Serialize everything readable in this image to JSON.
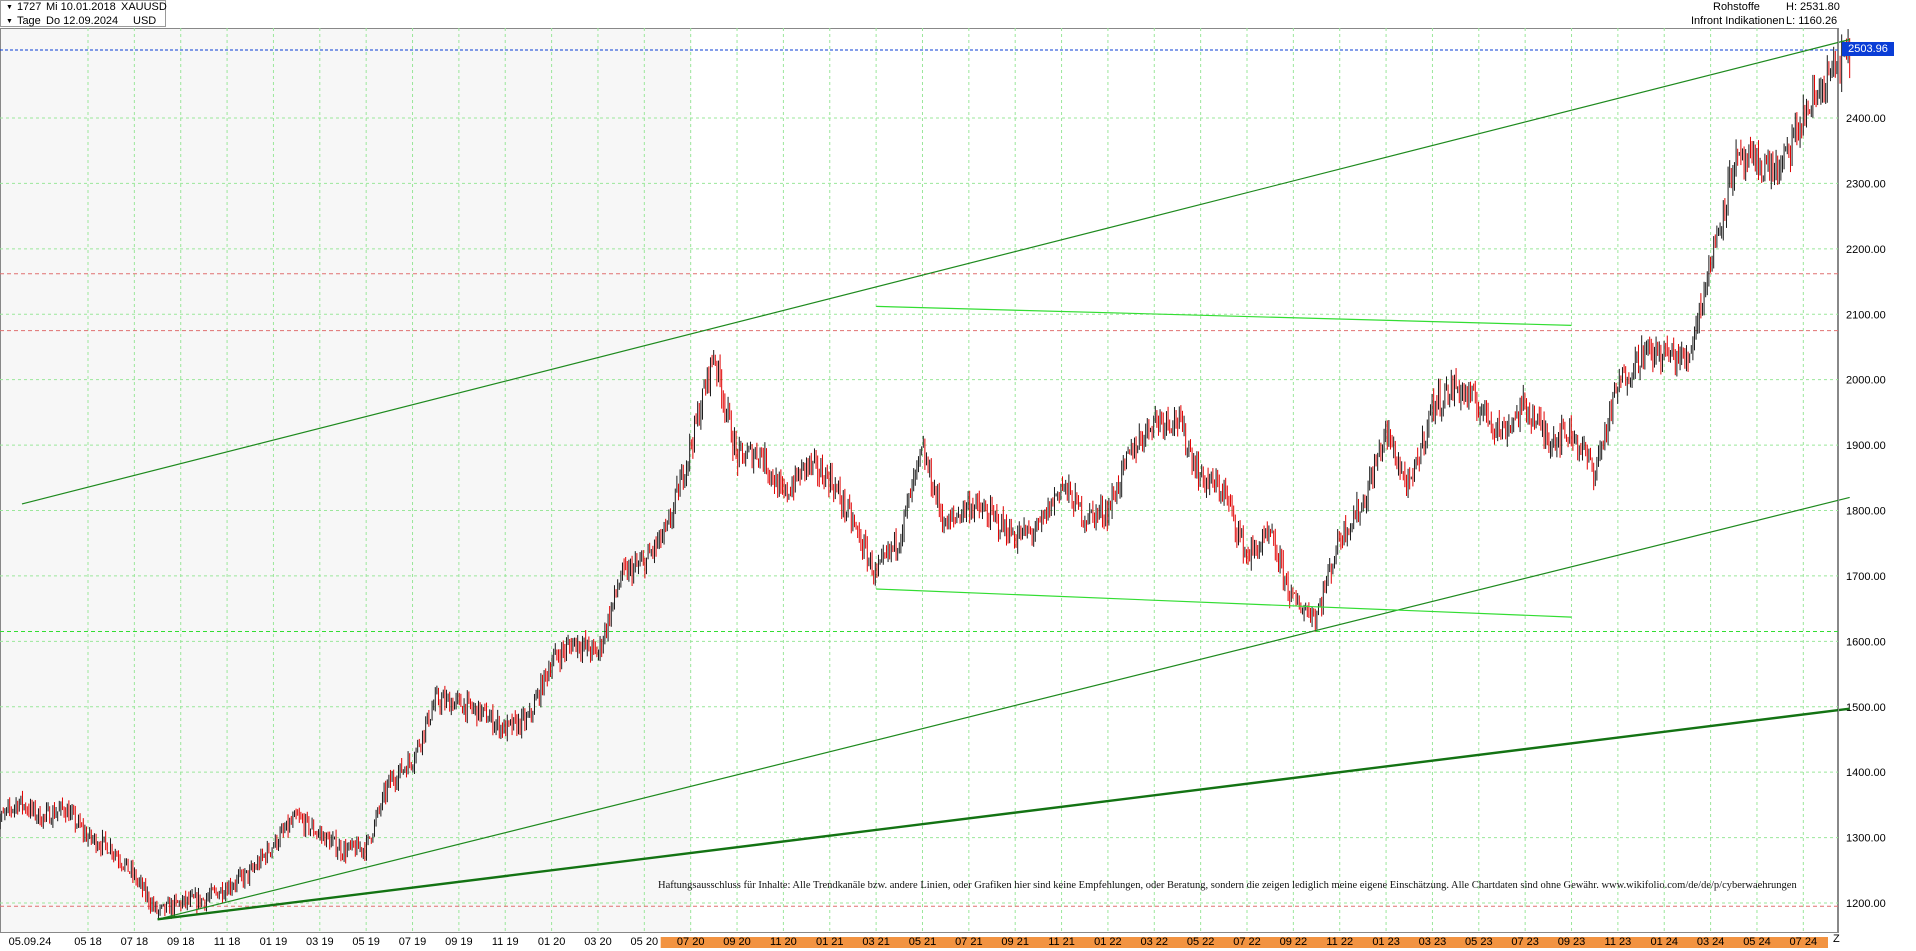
{
  "header": {
    "instrument_id": "1727",
    "start_date": "Mi 10.01.2018",
    "symbol": "XAUUSD",
    "period": "Tage",
    "end_date": "Do 12.09.2024",
    "currency": "USD",
    "category": "Rohstoffe",
    "high_label": "H: 2531.80",
    "source": "Infront Indikationen",
    "low_label": "L: 1160.26"
  },
  "last_price_label": "2503.96",
  "z_label": "Z",
  "disclaimer": "Haftungsausschluss für Inhalte: Alle Trendkanäle bzw. andere Linien, oder Grafiken hier sind keine Empfehlungen, oder Beratung, sondern die zeigen lediglich meine eigene Einschätzung. Alle Chartdaten sind ohne Gewähr.  www.wikifolio.com/de/de/p/cyberwaehrungen",
  "colors": {
    "candle_up": "#1a1a1a",
    "candle_down": "#e00000",
    "trend_dark": "#1e8a1e",
    "trend_thick": "#137313",
    "trend_light": "#33dd33",
    "grid": "#9be79b",
    "resistance": "#e07070",
    "marker_bar": "#f08020",
    "price_badge": "#0a3dd6",
    "price_line": "#0a3dd6"
  },
  "chart_data": {
    "type": "candlestick",
    "title": "XAUUSD",
    "xlabel": "",
    "ylabel": "",
    "y_range": [
      1175,
      2555
    ],
    "y_ticks": [
      1200,
      1300,
      1400,
      1500,
      1600,
      1700,
      1800,
      1900,
      2000,
      2100,
      2200,
      2300,
      2400
    ],
    "x_ticks": [
      "05.09.24",
      "05 18",
      "07 18",
      "09 18",
      "11 18",
      "01 19",
      "03 19",
      "05 19",
      "07 19",
      "09 19",
      "11 19",
      "01 20",
      "03 20",
      "05 20",
      "07 20",
      "09 20",
      "11 20",
      "01 21",
      "03 21",
      "05 21",
      "07 21",
      "09 21",
      "11 21",
      "01 22",
      "03 22",
      "05 22",
      "07 22",
      "09 22",
      "11 22",
      "01 23",
      "03 23",
      "05 23",
      "07 23",
      "09 23",
      "11 23",
      "01 24",
      "03 24",
      "05 24",
      "07 24"
    ],
    "last_price": 2503.96,
    "price_anchors": [
      [
        "01 18",
        1320
      ],
      [
        "02 18",
        1355
      ],
      [
        "03 18",
        1330
      ],
      [
        "04 18",
        1345
      ],
      [
        "05 18",
        1300
      ],
      [
        "06 18",
        1285
      ],
      [
        "07 18",
        1240
      ],
      [
        "08 18",
        1185
      ],
      [
        "09 18",
        1200
      ],
      [
        "10 18",
        1205
      ],
      [
        "11 18",
        1225
      ],
      [
        "12 18",
        1245
      ],
      [
        "01 19",
        1290
      ],
      [
        "02 19",
        1330
      ],
      [
        "03 19",
        1305
      ],
      [
        "04 19",
        1280
      ],
      [
        "05 19",
        1285
      ],
      [
        "06 19",
        1385
      ],
      [
        "07 19",
        1420
      ],
      [
        "08 19",
        1510
      ],
      [
        "09 19",
        1505
      ],
      [
        "10 19",
        1490
      ],
      [
        "11 19",
        1465
      ],
      [
        "12 19",
        1480
      ],
      [
        "01 20",
        1570
      ],
      [
        "02 20",
        1600
      ],
      [
        "03 20",
        1580
      ],
      [
        "04 20",
        1700
      ],
      [
        "05 20",
        1720
      ],
      [
        "06 20",
        1770
      ],
      [
        "07 20",
        1900
      ],
      [
        "08 20",
        2040
      ],
      [
        "09 20",
        1880
      ],
      [
        "10 20",
        1890
      ],
      [
        "11 20",
        1820
      ],
      [
        "12 20",
        1870
      ],
      [
        "01 21",
        1850
      ],
      [
        "02 21",
        1780
      ],
      [
        "03 21",
        1700
      ],
      [
        "04 21",
        1760
      ],
      [
        "05 21",
        1890
      ],
      [
        "06 21",
        1775
      ],
      [
        "07 21",
        1810
      ],
      [
        "08 21",
        1790
      ],
      [
        "09 21",
        1760
      ],
      [
        "10 21",
        1770
      ],
      [
        "11 21",
        1840
      ],
      [
        "12 21",
        1790
      ],
      [
        "01 22",
        1800
      ],
      [
        "02 22",
        1890
      ],
      [
        "03 22",
        1940
      ],
      [
        "04 22",
        1940
      ],
      [
        "05 22",
        1850
      ],
      [
        "06 22",
        1830
      ],
      [
        "07 22",
        1730
      ],
      [
        "08 22",
        1760
      ],
      [
        "09 22",
        1660
      ],
      [
        "10 22",
        1640
      ],
      [
        "11 22",
        1760
      ],
      [
        "12 22",
        1810
      ],
      [
        "01 23",
        1920
      ],
      [
        "02 23",
        1830
      ],
      [
        "03 23",
        1960
      ],
      [
        "04 23",
        1990
      ],
      [
        "05 23",
        1960
      ],
      [
        "06 23",
        1920
      ],
      [
        "07 23",
        1960
      ],
      [
        "08 23",
        1910
      ],
      [
        "09 23",
        1920
      ],
      [
        "10 23",
        1860
      ],
      [
        "11 23",
        1990
      ],
      [
        "12 23",
        2040
      ],
      [
        "01 24",
        2040
      ],
      [
        "02 24",
        2030
      ],
      [
        "03 24",
        2180
      ],
      [
        "04 24",
        2330
      ],
      [
        "05 24",
        2330
      ],
      [
        "06 24",
        2320
      ],
      [
        "07 24",
        2400
      ],
      [
        "08 24",
        2460
      ],
      [
        "09 24",
        2500
      ]
    ],
    "trendlines": [
      {
        "style": "dark",
        "from": [
          "01 18",
          1810
        ],
        "to": [
          "09 24",
          2520
        ]
      },
      {
        "style": "dark",
        "from": [
          "08 18",
          1175
        ],
        "to": [
          "09 24",
          1820
        ]
      },
      {
        "style": "thick",
        "from": [
          "08 18",
          1175
        ],
        "to": [
          "09 24",
          1497
        ]
      },
      {
        "style": "light",
        "from": [
          "03 21",
          2112
        ],
        "to": [
          "09 23",
          2083
        ]
      },
      {
        "style": "light",
        "from": [
          "03 21",
          1680
        ],
        "to": [
          "09 23",
          1637
        ]
      }
    ],
    "horizontal_levels": [
      {
        "value": 2162,
        "style": "resistance"
      },
      {
        "value": 2075,
        "style": "resistance"
      },
      {
        "value": 1615,
        "style": "support"
      },
      {
        "value": 1195,
        "style": "resistance"
      }
    ]
  }
}
